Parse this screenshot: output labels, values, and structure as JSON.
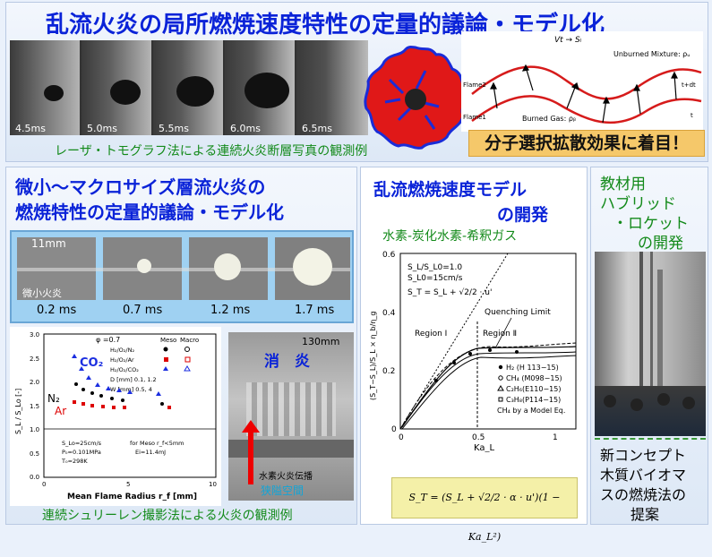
{
  "top": {
    "title": "乱流火炎の局所燃焼速度特性の定量的議論・モデル化",
    "times": [
      "4.5ms",
      "5.0ms",
      "5.5ms",
      "6.0ms",
      "6.5ms"
    ],
    "caption": "レーザ・トモグラフ法による連続火炎断層写真の観測例",
    "highlight": "分子選択拡散効果に着目！",
    "diagram": {
      "vt_label": "Vt → Sₗ",
      "unburned": "Unburned Mixture: ρᵤ",
      "flame2": "Flame2",
      "flame1": "Flame1",
      "burned": "Burned Gas: ρᵦ",
      "tdt": "t+dt",
      "t": "t"
    }
  },
  "left": {
    "title_line1": "微小～マクロサイズ層流火炎の",
    "title_line2": "燃焼特性の定量的議論・モデル化",
    "scale_label": "11mm",
    "small_flame": "微小火炎",
    "times": [
      "0.2 ms",
      "0.7 ms",
      "1.2 ms",
      "1.7 ms"
    ],
    "caption": "連続シュリーレン撮影法による火炎の観測例",
    "plot": {
      "ylabel": "S_L / S_Lo [-]",
      "xlabel": "Mean Flame Radius r_f [mm]",
      "phi": "φ =0.7",
      "meso": "Meso",
      "macro": "Macro",
      "legend": [
        "H₂/O₂/N₂",
        "H₂/O₂/Ar",
        "H₂/O₂/CO₂",
        "D  [mm]  0.1,  1.2",
        "W [mm]  0.5,   4"
      ],
      "co2": "CO₂",
      "n2": "N₂",
      "ar": "Ar",
      "notes": [
        "S_Lo=25cm/s",
        "P₀=0.101MPa",
        "T₀=298K",
        "for Meso r_f<5mm",
        "Ei=11.4mJ"
      ],
      "yticks": [
        "3.0",
        "2.5",
        "2.0",
        "1.5",
        "1.0",
        "0.5",
        "0.0"
      ],
      "xticks": [
        "0",
        "5",
        "10"
      ]
    },
    "quench_photo": {
      "scale": "130mm",
      "title": "消　炎",
      "note1": "水素火炎伝播",
      "note2": "狭隘空間"
    }
  },
  "middle": {
    "title_line1": "乱流燃焼速度モデル",
    "title_line2": "の開発",
    "subtitle": "水素-炭化水素-希釈ガス",
    "plot": {
      "ylabel": "(S_T−S_L)/S_L × η_b/η_g",
      "xlabel": "Ka_L",
      "info1": "S_L/S_L0=1.0",
      "info2": "S_L0=15cm/s",
      "info3": "S_T = S_L + √2/2 · u'",
      "quenching": "Quenching Limit",
      "region1": "Region Ⅰ",
      "region2": "Region Ⅱ",
      "legend": [
        "H₂    (H 113−15)",
        "CH₄ (M098−15)",
        "C₂H₆(E110−15)",
        "C₃H₈(P114−15)",
        "CH₄ by a Model Eq."
      ],
      "yticks": [
        "0.6",
        "0.4",
        "0.2",
        "0"
      ],
      "xticks": [
        "0",
        "0.5",
        "1"
      ]
    },
    "formula": "S_T = (S_L + √2/2 · α · u')(1 − Ka_L²)"
  },
  "right": {
    "title_line1": "教材用",
    "title_line2": "ハブリッド",
    "title_line3": "・ロケット",
    "title_line4": "の開発",
    "bottom_line1": "新コンセプト",
    "bottom_line2": "木質バイオマ",
    "bottom_line3": "スの燃焼法の",
    "bottom_line4": "提案"
  }
}
